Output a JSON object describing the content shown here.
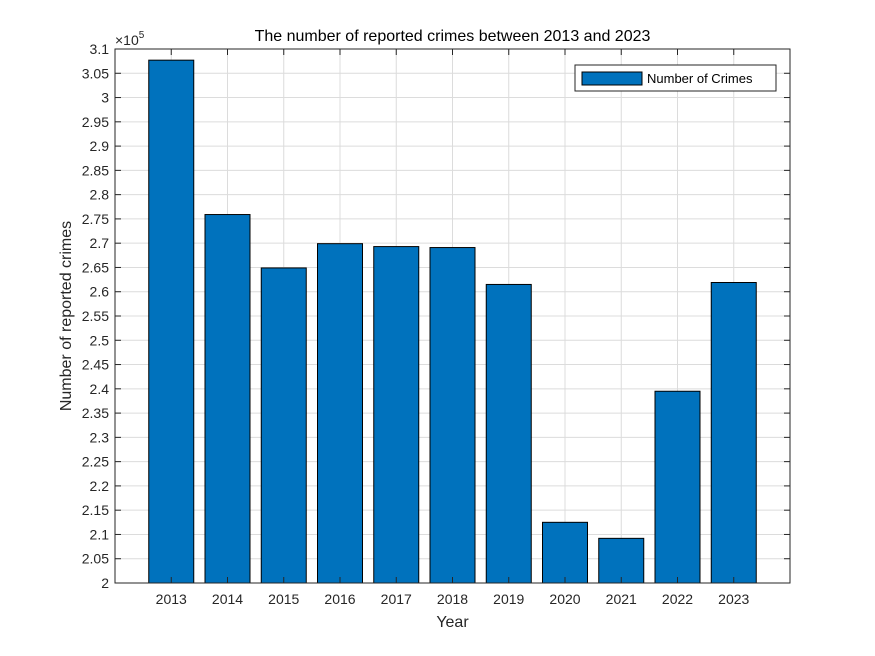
{
  "chart_data": {
    "type": "bar",
    "title": "The number of reported crimes between 2013 and 2023",
    "xlabel": "Year",
    "ylabel": "Number of reported crimes",
    "exponent_base": "×10",
    "exponent_power": "5",
    "categories": [
      "2013",
      "2014",
      "2015",
      "2016",
      "2017",
      "2018",
      "2019",
      "2020",
      "2021",
      "2022",
      "2023"
    ],
    "series": [
      {
        "name": "Number of Crimes",
        "values": [
          307700,
          275900,
          264900,
          269900,
          269300,
          269100,
          261500,
          212500,
          209200,
          239500,
          261900
        ]
      }
    ],
    "ylim": [
      200000,
      310000
    ],
    "ytick_step": 5000,
    "ytick_labels": [
      "2",
      "2.05",
      "2.1",
      "2.15",
      "2.2",
      "2.25",
      "2.3",
      "2.35",
      "2.4",
      "2.45",
      "2.5",
      "2.55",
      "2.6",
      "2.65",
      "2.7",
      "2.75",
      "2.8",
      "2.85",
      "2.9",
      "2.95",
      "3",
      "3.05",
      "3.1"
    ],
    "grid": true,
    "legend_position": "top-right",
    "colors": {
      "bar": "#0072BD",
      "bar_edge": "#000000",
      "grid": "#dcdcdc",
      "axis": "#262626"
    }
  }
}
